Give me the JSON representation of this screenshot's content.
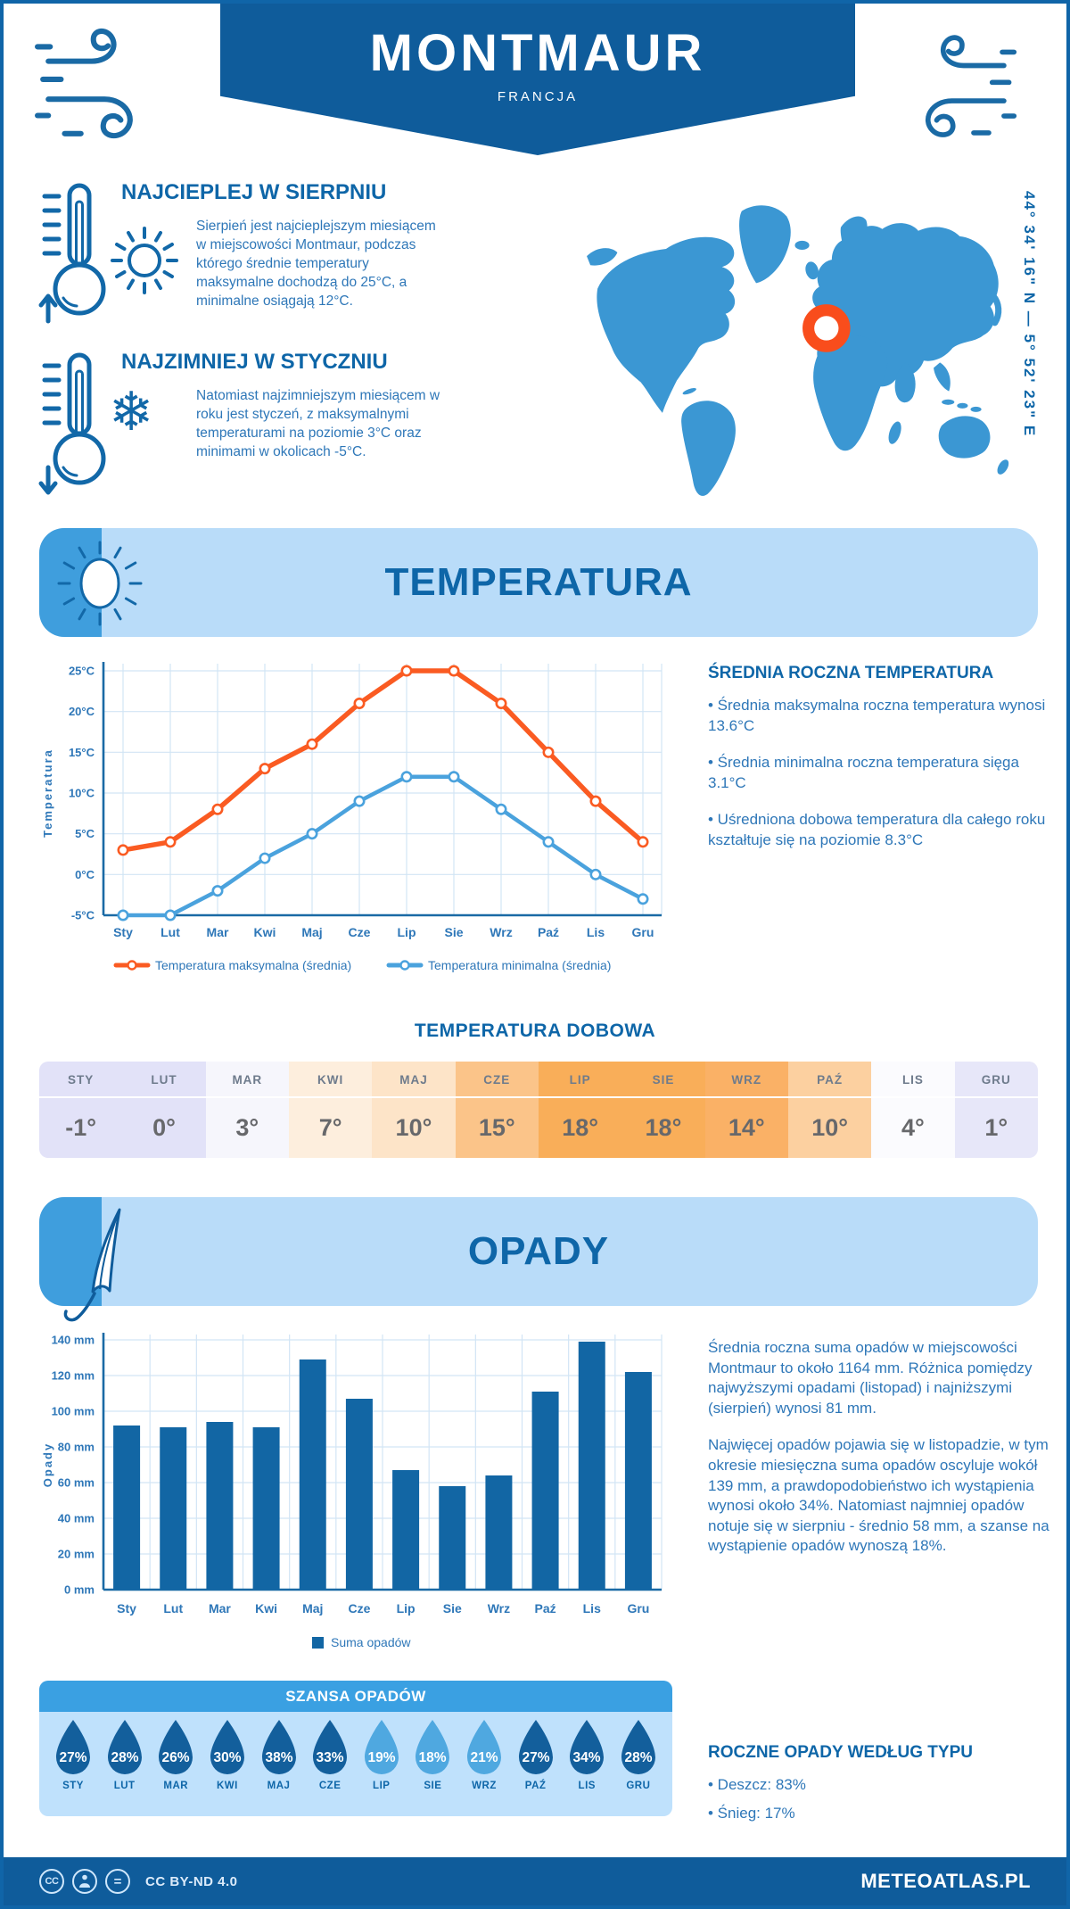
{
  "header": {
    "title": "MONTMAUR",
    "subtitle": "FRANCJA",
    "coordinates": "44° 34' 16\" N — 5° 52' 23\" E"
  },
  "highlights": {
    "warm": {
      "title": "NAJCIEPLEJ W SIERPNIU",
      "text": "Sierpień jest najcieplejszym miesiącem w miejscowości Montmaur, podczas którego średnie temperatury maksymalne dochodzą do 25°C, a minimalne osiągają 12°C."
    },
    "cold": {
      "title": "NAJZIMNIEJ W STYCZNIU",
      "text": "Natomiast najzimniejszym miesiącem w roku jest styczeń, z maksymalnymi temperaturami na poziomie 3°C oraz minimami w okolicach -5°C."
    }
  },
  "temperature_section": {
    "banner": "TEMPERATURA",
    "annual": {
      "title": "ŚREDNIA ROCZNA TEMPERATURA",
      "bullets": [
        "• Średnia maksymalna roczna temperatura wynosi 13.6°C",
        "• Średnia minimalna roczna temperatura sięga 3.1°C",
        "• Uśredniona dobowa temperatura dla całego roku kształtuje się na poziomie 8.3°C"
      ]
    },
    "daily": {
      "title": "TEMPERATURA DOBOWA",
      "months": [
        "STY",
        "LUT",
        "MAR",
        "KWI",
        "MAJ",
        "CZE",
        "LIP",
        "SIE",
        "WRZ",
        "PAŹ",
        "LIS",
        "GRU"
      ],
      "values": [
        "-1°",
        "0°",
        "3°",
        "7°",
        "10°",
        "15°",
        "18°",
        "18°",
        "14°",
        "10°",
        "4°",
        "1°"
      ],
      "cell_colors": [
        "#e2e2f8",
        "#e2e2f8",
        "#f6f6fc",
        "#fdeedd",
        "#fde4c8",
        "#fbc489",
        "#f9ae59",
        "#f9ae59",
        "#fab166",
        "#fcd0a0",
        "#fbfbfe",
        "#e7e7f9"
      ]
    }
  },
  "precipitation_section": {
    "banner": "OPADY",
    "summary_paragraphs": [
      "Średnia roczna suma opadów w miejscowości Montmaur to około 1164 mm. Różnica pomiędzy najwyższymi opadami (listopad) i najniższymi (sierpień) wynosi 81 mm.",
      "Najwięcej opadów pojawia się w listopadzie, w tym okresie miesięczna suma opadów oscyluje wokół 139 mm, a prawdopodobieństwo ich wystąpienia wynosi około 34%. Natomiast najmniej opadów notuje się w sierpniu - średnio 58 mm, a szanse na wystąpienie opadów wynoszą 18%."
    ],
    "type": {
      "title": "ROCZNE OPADY WEDŁUG TYPU",
      "bullets": [
        "• Deszcz: 83%",
        "• Śnieg: 17%"
      ]
    },
    "chance": {
      "title": "SZANSA OPADÓW",
      "months": [
        "STY",
        "LUT",
        "MAR",
        "KWI",
        "MAJ",
        "CZE",
        "LIP",
        "SIE",
        "WRZ",
        "PAŹ",
        "LIS",
        "GRU"
      ],
      "values": [
        "27%",
        "28%",
        "26%",
        "30%",
        "38%",
        "33%",
        "19%",
        "18%",
        "21%",
        "27%",
        "34%",
        "28%"
      ],
      "light_indices": [
        6,
        7,
        8
      ],
      "color_dark": "#135f9c",
      "color_light": "#4fa8e0"
    }
  },
  "chart_data": [
    {
      "type": "line",
      "x": [
        "Sty",
        "Lut",
        "Mar",
        "Kwi",
        "Maj",
        "Cze",
        "Lip",
        "Sie",
        "Wrz",
        "Paź",
        "Lis",
        "Gru"
      ],
      "ylabel": "Temperatura",
      "ylim": [
        -5,
        25
      ],
      "ytick_step": 5,
      "ytick_suffix": "°C",
      "grid": true,
      "legend_position": "bottom",
      "series": [
        {
          "name": "Temperatura maksymalna (średnia)",
          "color": "#fa5b22",
          "values": [
            3,
            4,
            8,
            13,
            16,
            21,
            25,
            25,
            21,
            15,
            9,
            4
          ]
        },
        {
          "name": "Temperatura minimalna (średnia)",
          "color": "#4aa2dd",
          "values": [
            -5,
            -5,
            -2,
            2,
            5,
            9,
            12,
            12,
            8,
            4,
            0,
            -3
          ]
        }
      ]
    },
    {
      "type": "bar",
      "categories": [
        "Sty",
        "Lut",
        "Mar",
        "Kwi",
        "Maj",
        "Cze",
        "Lip",
        "Sie",
        "Wrz",
        "Paź",
        "Lis",
        "Gru"
      ],
      "values": [
        92,
        91,
        94,
        91,
        129,
        107,
        67,
        58,
        64,
        111,
        139,
        122
      ],
      "title": "",
      "xlabel": "",
      "ylabel": "Opady",
      "ylim": [
        0,
        140
      ],
      "ytick_step": 20,
      "ytick_suffix": " mm",
      "grid": true,
      "legend": "Suma opadów",
      "bar_color": "#1266a4"
    }
  ],
  "colors": {
    "primary_dark_blue": "#0f5c9b",
    "heading_blue": "#0e66a8",
    "body_blue": "#2e77b8",
    "banner_light_blue": "#b9dcf9",
    "banner_icon_blue": "#3f9edd",
    "map_land": "#3b97d3",
    "marker_orange": "#f94d1c",
    "chance_header_blue": "#3aa0e2",
    "chance_box_blue": "#bfe1fc"
  },
  "footer": {
    "license": "CC BY-ND 4.0",
    "brand": "METEOATLAS.PL"
  }
}
